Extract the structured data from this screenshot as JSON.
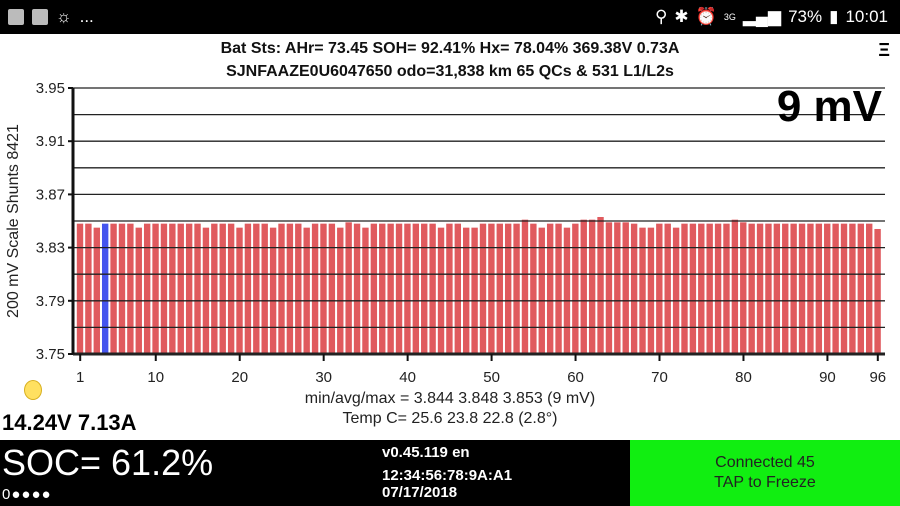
{
  "status_bar": {
    "left_icons": [
      "photo-icon",
      "gallery-icon",
      "brightness-icon"
    ],
    "more": "...",
    "battery": "73%",
    "time": "10:01",
    "network": "3G"
  },
  "header": {
    "line1": "Bat Sts:  AHr= 73.45  SOH= 92.41%   Hx= 78.04%   369.38V 0.73A",
    "line2": "SJNFAAZE0U6047650 odo=31,838 km  65 QCs & 531 L1/L2s",
    "menu": "Ξ"
  },
  "spread": "9 mV",
  "chart_data": {
    "type": "bar",
    "ylabel": "200 mV Scale  Shunts 8421",
    "ylim": [
      3.75,
      3.95
    ],
    "yticks": [
      "3.95",
      "3.91",
      "3.87",
      "3.83",
      "3.79",
      "3.75"
    ],
    "xticks": [
      "1",
      "10",
      "20",
      "30",
      "40",
      "50",
      "60",
      "70",
      "80",
      "90",
      "96"
    ],
    "grid": true,
    "bar_color": "#e05a5e",
    "highlight_color": "#4455ee",
    "highlight_cell": 4,
    "values": [
      3.848,
      3.848,
      3.845,
      3.848,
      3.848,
      3.848,
      3.848,
      3.845,
      3.848,
      3.848,
      3.848,
      3.848,
      3.848,
      3.848,
      3.848,
      3.845,
      3.848,
      3.848,
      3.848,
      3.845,
      3.848,
      3.848,
      3.848,
      3.845,
      3.848,
      3.848,
      3.848,
      3.845,
      3.848,
      3.848,
      3.848,
      3.845,
      3.849,
      3.848,
      3.845,
      3.848,
      3.848,
      3.848,
      3.848,
      3.848,
      3.848,
      3.848,
      3.848,
      3.845,
      3.848,
      3.848,
      3.845,
      3.845,
      3.848,
      3.848,
      3.848,
      3.848,
      3.848,
      3.851,
      3.848,
      3.845,
      3.848,
      3.848,
      3.845,
      3.848,
      3.851,
      3.851,
      3.853,
      3.849,
      3.849,
      3.849,
      3.848,
      3.845,
      3.845,
      3.848,
      3.848,
      3.845,
      3.848,
      3.848,
      3.848,
      3.848,
      3.848,
      3.848,
      3.851,
      3.849,
      3.848,
      3.848,
      3.848,
      3.848,
      3.848,
      3.848,
      3.848,
      3.848,
      3.848,
      3.848,
      3.848,
      3.848,
      3.848,
      3.848,
      3.848,
      3.844
    ]
  },
  "stats": {
    "minavgmax": "min/avg/max = 3.844 3.848 3.853  (9 mV)",
    "temp": "Temp C= 25.6  23.8  22.8  (2.8°)"
  },
  "aux": "14.24V 7.13A",
  "soc": "SOC= 61.2%",
  "soc_dots": "0●●●●",
  "version": "v0.45.119 en",
  "mac": "12:34:56:78:9A:A1",
  "date": "07/17/2018",
  "connection": {
    "line1": "Connected 45",
    "line2": "TAP to Freeze"
  }
}
